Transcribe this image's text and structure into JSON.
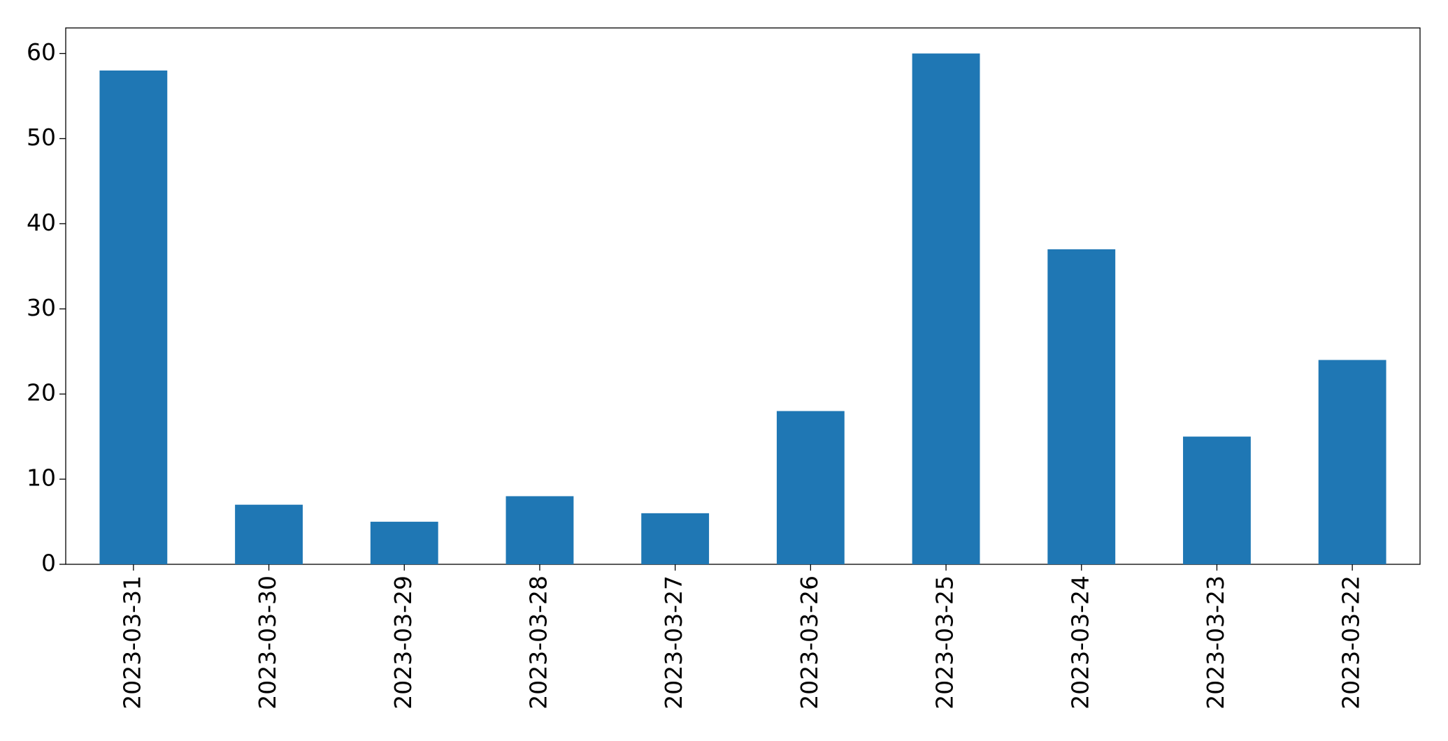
{
  "chart_data": {
    "type": "bar",
    "categories": [
      "2023-03-31",
      "2023-03-30",
      "2023-03-29",
      "2023-03-28",
      "2023-03-27",
      "2023-03-26",
      "2023-03-25",
      "2023-03-24",
      "2023-03-23",
      "2023-03-22"
    ],
    "values": [
      58,
      7,
      5,
      8,
      6,
      18,
      60,
      37,
      15,
      24
    ],
    "color": "#1f77b4",
    "ylim": [
      0,
      63
    ],
    "yticks": [
      0,
      10,
      20,
      30,
      40,
      50,
      60
    ],
    "grid": false
  }
}
